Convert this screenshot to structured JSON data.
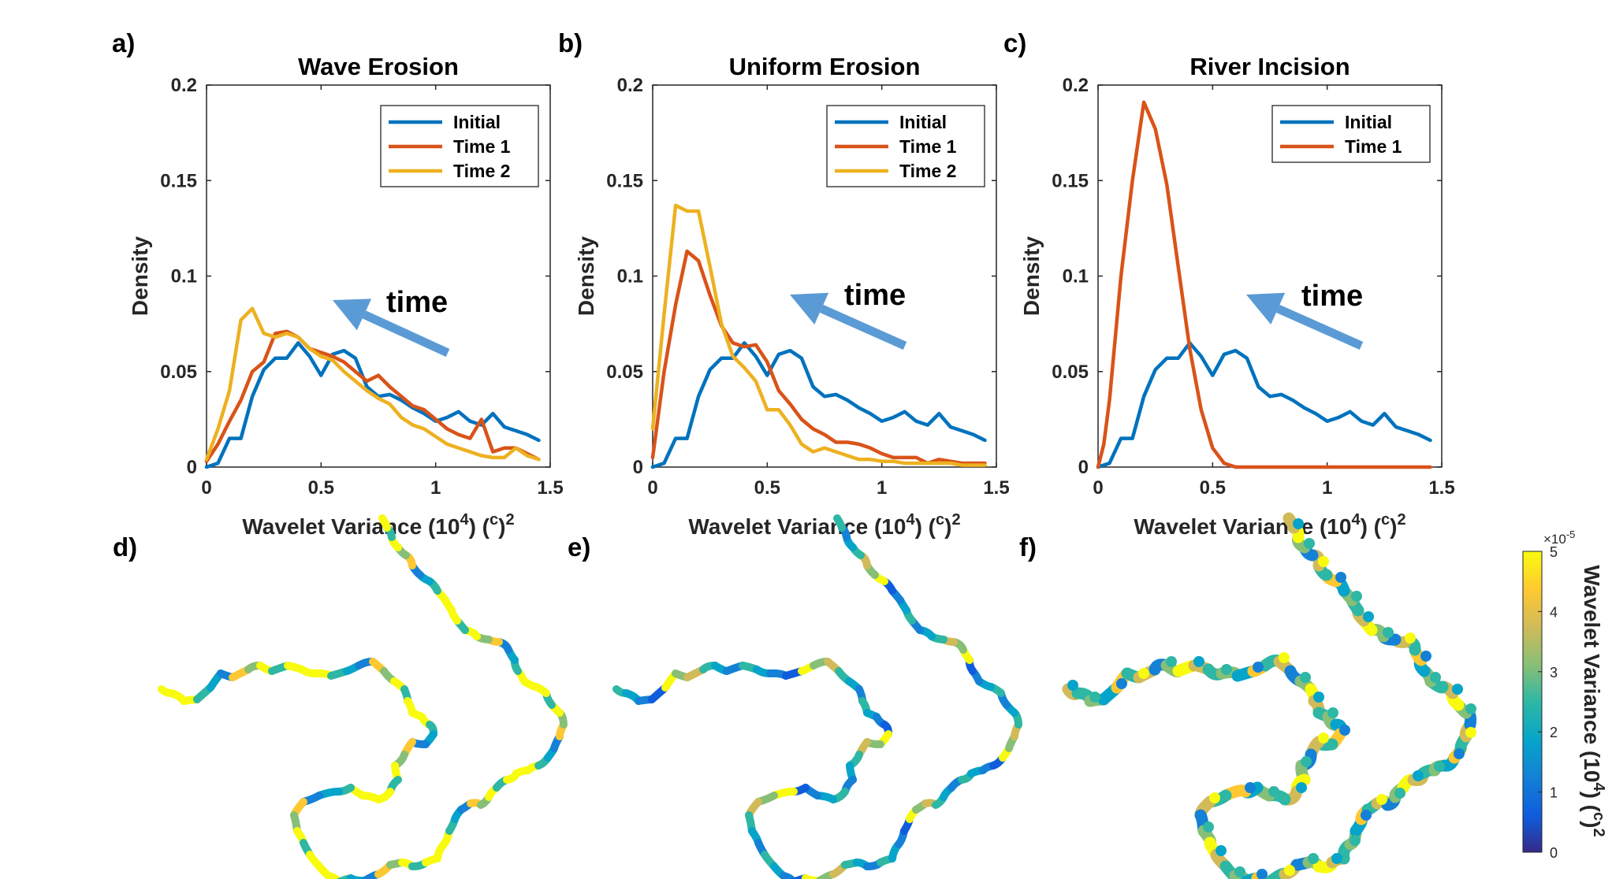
{
  "colors": {
    "Initial": "#0072BD",
    "Time 1": "#D95319",
    "Time 2": "#EDB120",
    "arrow": "#5B9BD5",
    "axis": "#262626"
  },
  "chart_data": [
    {
      "type": "line",
      "panel_label": "a)",
      "title": "Wave Erosion",
      "xlabel": "Wavelet Variance (10^4) (c)^2",
      "xlabel_main": "Wavelet Variance (10",
      "xlabel_sup1": "4",
      "xlabel_mid": ") (",
      "xlabel_c": "c",
      "xlabel_close": ")",
      "xlabel_sup2": "2",
      "ylabel": "Density",
      "xlim": [
        0,
        1.5
      ],
      "ylim": [
        0,
        0.2
      ],
      "xticks": [
        "0",
        "0.5",
        "1",
        "1.5"
      ],
      "yticks": [
        "0",
        "0.05",
        "0.1",
        "0.15",
        "0.2"
      ],
      "annotation": "time",
      "legend": [
        "Initial",
        "Time 1",
        "Time 2"
      ],
      "legend_position": "top-right",
      "series": [
        {
          "name": "Initial",
          "x": [
            0,
            0.05,
            0.1,
            0.15,
            0.2,
            0.25,
            0.3,
            0.35,
            0.4,
            0.45,
            0.5,
            0.55,
            0.6,
            0.65,
            0.7,
            0.75,
            0.8,
            0.85,
            0.9,
            0.95,
            1.0,
            1.05,
            1.1,
            1.15,
            1.2,
            1.25,
            1.3,
            1.35,
            1.4,
            1.45
          ],
          "y": [
            0,
            0.002,
            0.015,
            0.015,
            0.037,
            0.051,
            0.057,
            0.057,
            0.065,
            0.058,
            0.048,
            0.059,
            0.061,
            0.057,
            0.042,
            0.037,
            0.038,
            0.035,
            0.031,
            0.028,
            0.024,
            0.026,
            0.029,
            0.024,
            0.022,
            0.028,
            0.021,
            0.019,
            0.017,
            0.014
          ]
        },
        {
          "name": "Time 1",
          "x": [
            0,
            0.05,
            0.1,
            0.15,
            0.2,
            0.25,
            0.3,
            0.35,
            0.4,
            0.45,
            0.5,
            0.55,
            0.6,
            0.65,
            0.7,
            0.75,
            0.8,
            0.85,
            0.9,
            0.95,
            1.0,
            1.05,
            1.1,
            1.15,
            1.2,
            1.25,
            1.3,
            1.35,
            1.4,
            1.45
          ],
          "y": [
            0.003,
            0.012,
            0.024,
            0.035,
            0.05,
            0.055,
            0.07,
            0.071,
            0.068,
            0.062,
            0.06,
            0.058,
            0.055,
            0.05,
            0.045,
            0.048,
            0.042,
            0.037,
            0.032,
            0.03,
            0.025,
            0.02,
            0.017,
            0.015,
            0.025,
            0.008,
            0.01,
            0.01,
            0.007,
            0.004
          ]
        },
        {
          "name": "Time 2",
          "x": [
            0,
            0.05,
            0.1,
            0.15,
            0.2,
            0.25,
            0.3,
            0.35,
            0.4,
            0.45,
            0.5,
            0.55,
            0.6,
            0.65,
            0.7,
            0.75,
            0.8,
            0.85,
            0.9,
            0.95,
            1.0,
            1.05,
            1.1,
            1.15,
            1.2,
            1.25,
            1.3,
            1.35,
            1.4,
            1.45
          ],
          "y": [
            0.004,
            0.02,
            0.04,
            0.077,
            0.083,
            0.07,
            0.068,
            0.07,
            0.068,
            0.062,
            0.058,
            0.056,
            0.05,
            0.045,
            0.04,
            0.036,
            0.033,
            0.026,
            0.022,
            0.02,
            0.016,
            0.012,
            0.01,
            0.008,
            0.006,
            0.005,
            0.005,
            0.01,
            0.006,
            0.004
          ]
        }
      ]
    },
    {
      "type": "line",
      "panel_label": "b)",
      "title": "Uniform Erosion",
      "xlabel": "Wavelet Variance (10^4) (c)^2",
      "xlabel_main": "Wavelet Variance (10",
      "xlabel_sup1": "4",
      "xlabel_mid": ") (",
      "xlabel_c": "c",
      "xlabel_close": ")",
      "xlabel_sup2": "2",
      "ylabel": "Density",
      "xlim": [
        0,
        1.5
      ],
      "ylim": [
        0,
        0.2
      ],
      "xticks": [
        "0",
        "0.5",
        "1",
        "1.5"
      ],
      "yticks": [
        "0",
        "0.05",
        "0.1",
        "0.15",
        "0.2"
      ],
      "annotation": "time",
      "legend": [
        "Initial",
        "Time 1",
        "Time 2"
      ],
      "legend_position": "top-right",
      "series": [
        {
          "name": "Initial",
          "x": [
            0,
            0.05,
            0.1,
            0.15,
            0.2,
            0.25,
            0.3,
            0.35,
            0.4,
            0.45,
            0.5,
            0.55,
            0.6,
            0.65,
            0.7,
            0.75,
            0.8,
            0.85,
            0.9,
            0.95,
            1.0,
            1.05,
            1.1,
            1.15,
            1.2,
            1.25,
            1.3,
            1.35,
            1.4,
            1.45
          ],
          "y": [
            0,
            0.002,
            0.015,
            0.015,
            0.037,
            0.051,
            0.057,
            0.057,
            0.065,
            0.058,
            0.048,
            0.059,
            0.061,
            0.057,
            0.042,
            0.037,
            0.038,
            0.035,
            0.031,
            0.028,
            0.024,
            0.026,
            0.029,
            0.024,
            0.022,
            0.028,
            0.021,
            0.019,
            0.017,
            0.014
          ]
        },
        {
          "name": "Time 1",
          "x": [
            0,
            0.05,
            0.1,
            0.15,
            0.2,
            0.25,
            0.3,
            0.35,
            0.4,
            0.45,
            0.5,
            0.55,
            0.6,
            0.65,
            0.7,
            0.75,
            0.8,
            0.85,
            0.9,
            0.95,
            1.0,
            1.05,
            1.1,
            1.15,
            1.2,
            1.25,
            1.3,
            1.35,
            1.4,
            1.45
          ],
          "y": [
            0.005,
            0.05,
            0.085,
            0.113,
            0.108,
            0.09,
            0.074,
            0.065,
            0.063,
            0.064,
            0.055,
            0.04,
            0.033,
            0.025,
            0.02,
            0.017,
            0.013,
            0.013,
            0.012,
            0.01,
            0.007,
            0.005,
            0.005,
            0.005,
            0.002,
            0.004,
            0.003,
            0.002,
            0.002,
            0.002
          ]
        },
        {
          "name": "Time 2",
          "x": [
            0,
            0.05,
            0.1,
            0.15,
            0.2,
            0.25,
            0.3,
            0.35,
            0.4,
            0.45,
            0.5,
            0.55,
            0.6,
            0.65,
            0.7,
            0.75,
            0.8,
            0.85,
            0.9,
            0.95,
            1.0,
            1.05,
            1.1,
            1.15,
            1.2,
            1.25,
            1.3,
            1.35,
            1.4,
            1.45
          ],
          "y": [
            0.02,
            0.08,
            0.137,
            0.134,
            0.134,
            0.105,
            0.075,
            0.058,
            0.052,
            0.045,
            0.03,
            0.03,
            0.022,
            0.012,
            0.008,
            0.01,
            0.008,
            0.006,
            0.004,
            0.004,
            0.003,
            0.003,
            0.002,
            0.002,
            0.002,
            0.002,
            0.002,
            0.001,
            0.001,
            0.001
          ]
        }
      ]
    },
    {
      "type": "line",
      "panel_label": "c)",
      "title": "River Incision",
      "xlabel": "Wavelet Variance (10^4) (c)^2",
      "xlabel_main": "Wavelet Variance (10",
      "xlabel_sup1": "4",
      "xlabel_mid": ") (",
      "xlabel_c": "c",
      "xlabel_close": ")",
      "xlabel_sup2": "2",
      "ylabel": "Density",
      "xlim": [
        0,
        1.5
      ],
      "ylim": [
        0,
        0.2
      ],
      "xticks": [
        "0",
        "0.5",
        "1",
        "1.5"
      ],
      "yticks": [
        "0",
        "0.05",
        "0.1",
        "0.15",
        "0.2"
      ],
      "annotation": "time",
      "legend": [
        "Initial",
        "Time 1"
      ],
      "legend_position": "top-right",
      "series": [
        {
          "name": "Initial",
          "x": [
            0,
            0.05,
            0.1,
            0.15,
            0.2,
            0.25,
            0.3,
            0.35,
            0.4,
            0.45,
            0.5,
            0.55,
            0.6,
            0.65,
            0.7,
            0.75,
            0.8,
            0.85,
            0.9,
            0.95,
            1.0,
            1.05,
            1.1,
            1.15,
            1.2,
            1.25,
            1.3,
            1.35,
            1.4,
            1.45
          ],
          "y": [
            0,
            0.002,
            0.015,
            0.015,
            0.037,
            0.051,
            0.057,
            0.057,
            0.065,
            0.058,
            0.048,
            0.059,
            0.061,
            0.057,
            0.042,
            0.037,
            0.038,
            0.035,
            0.031,
            0.028,
            0.024,
            0.026,
            0.029,
            0.024,
            0.022,
            0.028,
            0.021,
            0.019,
            0.017,
            0.014
          ]
        },
        {
          "name": "Time 1",
          "x": [
            0,
            0.025,
            0.05,
            0.1,
            0.15,
            0.2,
            0.25,
            0.3,
            0.35,
            0.4,
            0.45,
            0.5,
            0.55,
            0.6,
            0.65,
            0.7,
            0.8,
            0.9,
            1.0,
            1.1,
            1.2,
            1.3,
            1.4,
            1.45
          ],
          "y": [
            0,
            0.012,
            0.035,
            0.1,
            0.15,
            0.191,
            0.177,
            0.148,
            0.105,
            0.062,
            0.03,
            0.01,
            0.002,
            0,
            0,
            0,
            0,
            0,
            0,
            0,
            0,
            0,
            0,
            0
          ]
        }
      ]
    }
  ],
  "maps": [
    {
      "panel_label": "d)"
    },
    {
      "panel_label": "e)"
    },
    {
      "panel_label": "f)"
    }
  ],
  "colorbar": {
    "label": "Wavelet Variance (10^4) (c)^2",
    "label_main": "Wavelet Variance (10",
    "label_sup1": "4",
    "label_mid": ") (",
    "label_c": "c",
    "label_close": ")",
    "label_sup2": "2",
    "exponent": "×10",
    "exponent_power": "-5",
    "ticks": [
      "0",
      "1",
      "2",
      "3",
      "4",
      "5"
    ],
    "range": [
      0,
      5
    ],
    "colormap": "parula"
  }
}
